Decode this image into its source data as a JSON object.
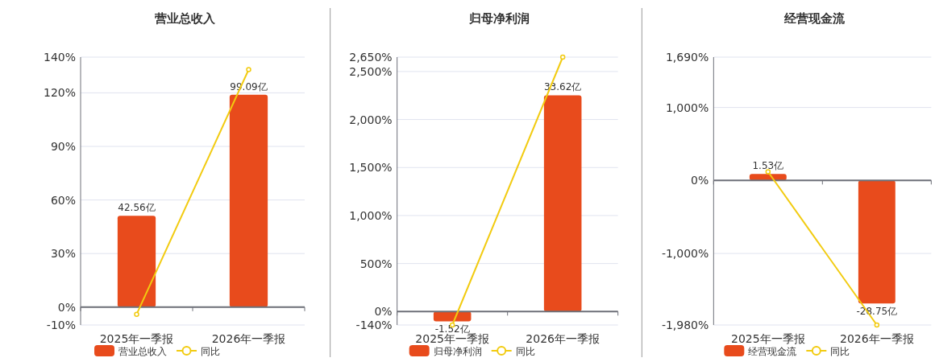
{
  "chart_data": [
    {
      "type": "bar",
      "title": "营业总收入",
      "categories": [
        "2025年一季报",
        "2026年一季报"
      ],
      "series": [
        {
          "name": "营业总收入",
          "color": "#e84b1c",
          "values": [
            42.56,
            99.09
          ],
          "value_labels": [
            "42.56亿",
            "99.09亿"
          ],
          "axis": "y2"
        },
        {
          "name": "同比",
          "type": "line",
          "color": "#f2cb10",
          "values": [
            -4,
            133
          ],
          "marker": "circle"
        }
      ],
      "ylim": [
        -10,
        140
      ],
      "yticks": [
        {
          "value": -10,
          "label": "-10%"
        },
        {
          "value": 0,
          "label": "0%"
        },
        {
          "value": 30,
          "label": "30%"
        },
        {
          "value": 60,
          "label": "60%"
        },
        {
          "value": 90,
          "label": "90%"
        },
        {
          "value": 120,
          "label": "120%"
        },
        {
          "value": 140,
          "label": "140%"
        }
      ],
      "y2lim": [
        -8.33,
        116.6
      ],
      "grid": "y",
      "legend": "bottom"
    },
    {
      "type": "bar",
      "title": "归母净利润",
      "categories": [
        "2025年一季报",
        "2026年一季报"
      ],
      "series": [
        {
          "name": "归母净利润",
          "color": "#e84b1c",
          "values": [
            -1.52,
            33.62
          ],
          "value_labels": [
            "-1.52亿",
            "33.62亿"
          ],
          "axis": "y2"
        },
        {
          "name": "同比",
          "type": "line",
          "color": "#f2cb10",
          "values": [
            -140,
            2650
          ],
          "marker": "circle"
        }
      ],
      "ylim": [
        -140,
        2650
      ],
      "yticks": [
        {
          "value": -140,
          "label": "-140%"
        },
        {
          "value": 0,
          "label": "0%"
        },
        {
          "value": 500,
          "label": "500%"
        },
        {
          "value": 1000,
          "label": "1,000%"
        },
        {
          "value": 1500,
          "label": "1,500%"
        },
        {
          "value": 2000,
          "label": "2,000%"
        },
        {
          "value": 2500,
          "label": "2,500%"
        },
        {
          "value": 2650,
          "label": "2,650%"
        }
      ],
      "y2lim": [
        -2.09,
        39.56
      ],
      "grid": "y",
      "legend": "bottom"
    },
    {
      "type": "bar",
      "title": "经营现金流",
      "categories": [
        "2025年一季报",
        "2026年一季报"
      ],
      "series": [
        {
          "name": "经营现金流",
          "color": "#e84b1c",
          "values": [
            1.53,
            -28.75
          ],
          "value_labels": [
            "1.53亿",
            "-28.75亿"
          ],
          "axis": "y2"
        },
        {
          "name": "同比",
          "type": "line",
          "color": "#f2cb10",
          "values": [
            120,
            -1980
          ],
          "marker": "circle"
        }
      ],
      "ylim": [
        -1980,
        1690
      ],
      "yticks": [
        {
          "value": -1980,
          "label": "-1,980%"
        },
        {
          "value": -1000,
          "label": "-1,000%"
        },
        {
          "value": 0,
          "label": "0%"
        },
        {
          "value": 1000,
          "label": "1,000%"
        },
        {
          "value": 1690,
          "label": "1,690%"
        }
      ],
      "y2lim": [
        -33.78,
        28.83
      ],
      "grid": "y",
      "legend": "bottom"
    }
  ]
}
